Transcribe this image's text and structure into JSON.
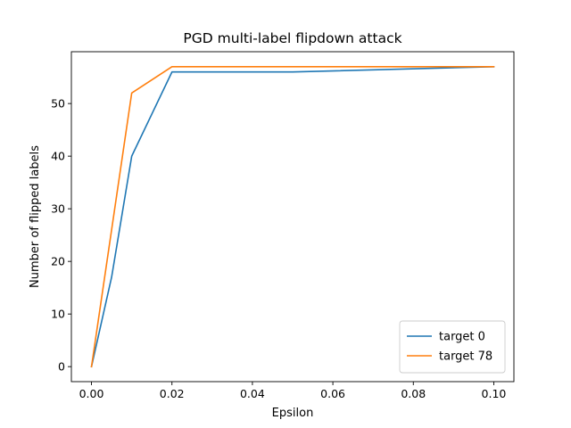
{
  "chart_data": {
    "type": "line",
    "title": "PGD multi-label flipdown attack",
    "xlabel": "Epsilon",
    "ylabel": "Number of flipped labels",
    "xlim": [
      -0.005,
      0.105
    ],
    "ylim": [
      -2.85,
      59.85
    ],
    "xticks": [
      0.0,
      0.02,
      0.04,
      0.06,
      0.08,
      0.1
    ],
    "xtick_labels": [
      "0.00",
      "0.02",
      "0.04",
      "0.06",
      "0.08",
      "0.10"
    ],
    "yticks": [
      0,
      10,
      20,
      30,
      40,
      50
    ],
    "ytick_labels": [
      "0",
      "10",
      "20",
      "30",
      "40",
      "50"
    ],
    "grid": false,
    "legend_position": "lower-right",
    "series": [
      {
        "name": "target 0",
        "color": "#1f77b4",
        "x": [
          0.0,
          0.005,
          0.01,
          0.02,
          0.05,
          0.1
        ],
        "y": [
          0,
          17,
          40,
          56,
          56,
          57
        ]
      },
      {
        "name": "target 78",
        "color": "#ff7f0e",
        "x": [
          0.0,
          0.005,
          0.01,
          0.02,
          0.05,
          0.1
        ],
        "y": [
          0,
          26,
          52,
          57,
          57,
          57
        ]
      }
    ]
  }
}
